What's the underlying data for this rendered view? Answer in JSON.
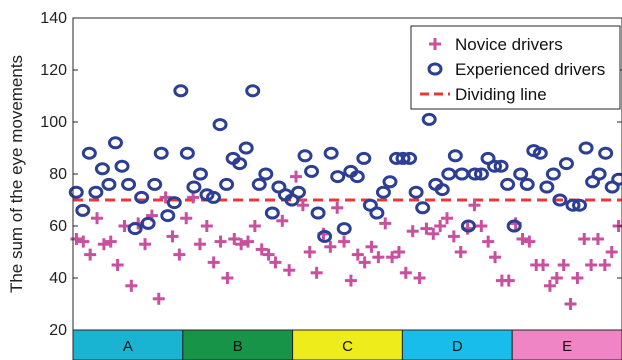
{
  "chart_data": {
    "type": "scatter",
    "ylabel": "The sum of the eye movements",
    "xlabel": "",
    "ylim": [
      20,
      140
    ],
    "yticks": [
      20,
      40,
      60,
      80,
      100,
      120,
      140
    ],
    "grid": false,
    "legend_position": "top-right",
    "colors": {
      "novice": "#c8509f",
      "experienced": "#2d3f94",
      "dividing": "#e8383b"
    },
    "dividing_line": {
      "name": "Dividing line",
      "y": 70
    },
    "groups": [
      {
        "label": "A",
        "color": "#19b4d2",
        "x_start": 0,
        "x_end": 20
      },
      {
        "label": "B",
        "color": "#179447",
        "x_start": 20,
        "x_end": 40
      },
      {
        "label": "C",
        "color": "#eeec1b",
        "x_start": 40,
        "x_end": 60
      },
      {
        "label": "D",
        "color": "#18bdeb",
        "x_start": 60,
        "x_end": 80
      },
      {
        "label": "E",
        "color": "#ef85c4",
        "x_start": 80,
        "x_end": 100
      }
    ],
    "series": [
      {
        "name": "Novice drivers",
        "marker": "plus",
        "values": [
          55,
          54,
          49,
          63,
          53,
          54,
          45,
          60,
          37,
          61,
          53,
          64,
          32,
          71,
          56,
          49,
          63,
          71,
          53,
          60,
          46,
          54,
          40,
          55,
          53,
          54,
          60,
          51,
          49,
          46,
          62,
          43,
          79,
          68,
          50,
          42,
          57,
          52,
          67,
          54,
          39,
          49,
          46,
          52,
          48,
          61,
          48,
          50,
          42,
          58,
          40,
          59,
          57,
          60,
          63,
          56,
          50,
          59,
          68,
          60,
          54,
          48,
          39,
          39,
          61,
          55,
          54,
          45,
          45,
          37,
          40,
          45,
          30,
          40,
          55,
          45,
          55,
          45,
          50,
          60
        ]
      },
      {
        "name": "Experienced drivers",
        "marker": "circle",
        "values": [
          73,
          66,
          88,
          73,
          82,
          76,
          92,
          83,
          76,
          59,
          71,
          61,
          76,
          88,
          64,
          69,
          112,
          88,
          75,
          80,
          72,
          71,
          99,
          76,
          86,
          84,
          90,
          112,
          76,
          80,
          65,
          75,
          72,
          70,
          73,
          87,
          81,
          65,
          56,
          88,
          79,
          59,
          81,
          79,
          86,
          68,
          65,
          73,
          77,
          86,
          86,
          86,
          73,
          67,
          101,
          76,
          74,
          80,
          87,
          80,
          60,
          80,
          80,
          86,
          83,
          83,
          76,
          60,
          80,
          76,
          89,
          88,
          75,
          80,
          70,
          84,
          68,
          68,
          90,
          77,
          80,
          88,
          75,
          78
        ]
      }
    ]
  }
}
